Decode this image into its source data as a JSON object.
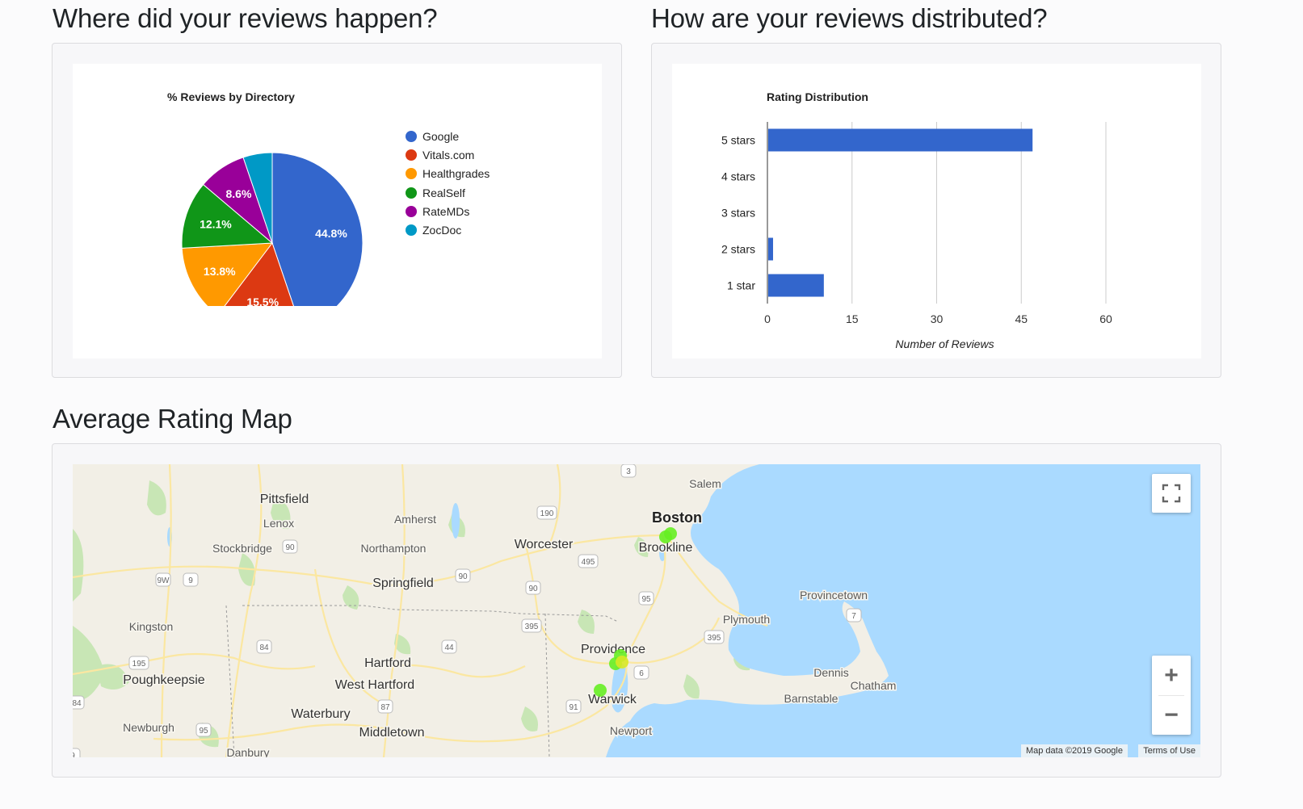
{
  "sections": {
    "directory_heading": "Where did your reviews happen?",
    "distribution_heading": "How are your reviews distributed?",
    "map_heading": "Average Rating Map"
  },
  "pie": {
    "title": "% Reviews by Directory",
    "slice_labels": [
      "44.8%",
      "15.5%",
      "13.8%",
      "12.1%",
      "8.6%",
      ""
    ],
    "legend": [
      "Google",
      "Vitals.com",
      "Healthgrades",
      "RealSelf",
      "RateMDs",
      "ZocDoc"
    ]
  },
  "bar": {
    "title": "Rating Distribution",
    "categories": [
      "5 stars",
      "4 stars",
      "3 stars",
      "2 stars",
      "1 star"
    ],
    "ticks": [
      "0",
      "15",
      "30",
      "45",
      "60"
    ],
    "xlabel": "Number of Reviews"
  },
  "chart_data": [
    {
      "type": "pie",
      "title": "% Reviews by Directory",
      "categories": [
        "Google",
        "Vitals.com",
        "Healthgrades",
        "RealSelf",
        "RateMDs",
        "ZocDoc"
      ],
      "values": [
        44.8,
        15.5,
        13.8,
        12.1,
        8.6,
        5.2
      ],
      "colors": [
        "#3366cc",
        "#dc3912",
        "#ff9900",
        "#109618",
        "#990099",
        "#0099c6"
      ],
      "legend_position": "right"
    },
    {
      "type": "bar",
      "orientation": "horizontal",
      "title": "Rating Distribution",
      "categories": [
        "5 stars",
        "4 stars",
        "3 stars",
        "2 stars",
        "1 star"
      ],
      "values": [
        47,
        0,
        0,
        1,
        10
      ],
      "xlabel": "Number of Reviews",
      "ylabel": "",
      "xlim": [
        0,
        60
      ],
      "xticks": [
        0,
        15,
        30,
        45,
        60
      ],
      "grid": true,
      "color": "#3366cc"
    }
  ],
  "map": {
    "places": [
      "Pittsfield",
      "Lenox",
      "Amherst",
      "Northampton",
      "Stockbridge",
      "Worcester",
      "Springfield",
      "Boston",
      "Brookline",
      "Salem",
      "Kingston",
      "Poughkeepsie",
      "Hartford",
      "West Hartford",
      "Waterbury",
      "Middletown",
      "Newburgh",
      "Danbury",
      "Providence",
      "Warwick",
      "Newport",
      "Plymouth",
      "Provincetown",
      "Dennis",
      "Chatham",
      "Barnstable"
    ],
    "route_shields": [
      "3",
      "190",
      "90",
      "90",
      "495",
      "9W",
      "9",
      "90",
      "395",
      "95",
      "395",
      "44",
      "84",
      "7",
      "6",
      "195",
      "87",
      "91",
      "95",
      "84",
      "9"
    ],
    "markers": [
      {
        "place": "Boston",
        "rating": 5,
        "color": "#66ee22"
      },
      {
        "place": "Providence",
        "rating": 5,
        "color": "#66ee22"
      },
      {
        "place": "Providence",
        "rating": 4,
        "color": "#d8e825"
      },
      {
        "place": "Warwick",
        "rating": 5,
        "color": "#66ee22"
      }
    ],
    "attribution": "Map data ©2019 Google",
    "terms": "Terms of Use",
    "zoom_in": "+",
    "zoom_out": "−",
    "water_color": "#aadaff",
    "land_color": "#f2efe6"
  }
}
